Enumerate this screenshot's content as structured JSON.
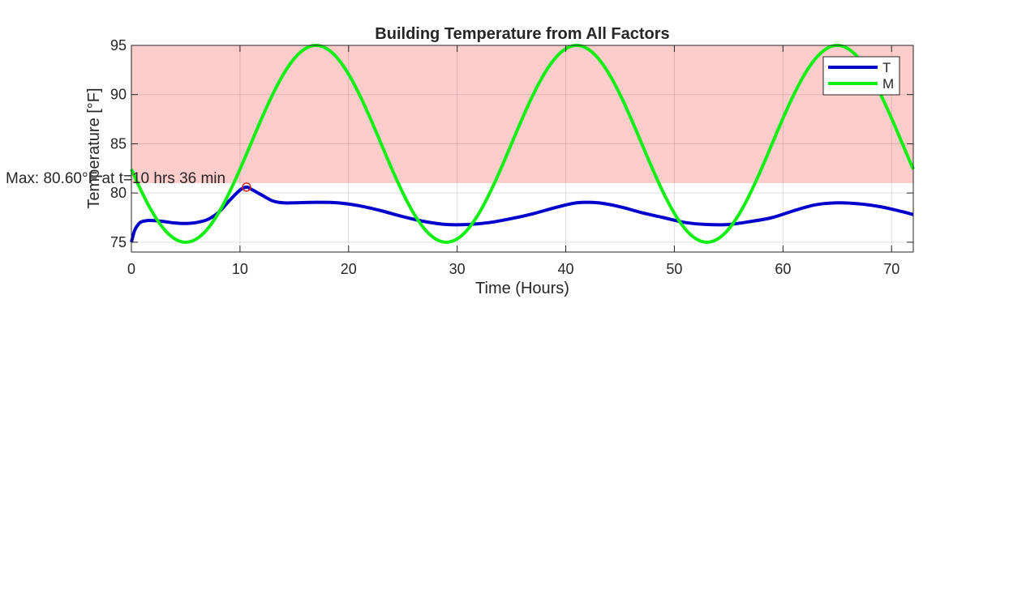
{
  "chart_data": {
    "type": "line",
    "title": "Building Temperature from All Factors",
    "xlabel": "Time (Hours)",
    "ylabel": "Temperature [°F]",
    "xlim": [
      0,
      72
    ],
    "ylim": [
      74,
      95
    ],
    "xticks": [
      0,
      10,
      20,
      30,
      40,
      50,
      60,
      70
    ],
    "yticks": [
      75,
      80,
      85,
      90,
      95
    ],
    "grid": true,
    "legend_position": "top-right",
    "shaded_region": {
      "y_from": 81,
      "y_to": 95,
      "color": "#ffcccc"
    },
    "series": [
      {
        "name": "T",
        "color": "#0000cc",
        "x": [
          0,
          0.3,
          0.7,
          1,
          1.5,
          2,
          3,
          4,
          5,
          6,
          7,
          8,
          9,
          10,
          10.6,
          11,
          12,
          13,
          14,
          15,
          17,
          19,
          21,
          23,
          25,
          27,
          29,
          31,
          33,
          35,
          37,
          39,
          41,
          43,
          45,
          47,
          49,
          51,
          53,
          55,
          57,
          59,
          61,
          63,
          65,
          67,
          69,
          71,
          72
        ],
        "values": [
          75.0,
          76.2,
          76.9,
          77.1,
          77.2,
          77.2,
          77.1,
          76.95,
          76.9,
          77.0,
          77.3,
          78.0,
          79.2,
          80.3,
          80.6,
          80.4,
          79.8,
          79.2,
          79.0,
          79.0,
          79.05,
          79.0,
          78.7,
          78.2,
          77.6,
          77.1,
          76.8,
          76.8,
          77.0,
          77.4,
          77.9,
          78.5,
          79.0,
          79.0,
          78.6,
          78.0,
          77.5,
          77.0,
          76.8,
          76.8,
          77.1,
          77.5,
          78.2,
          78.8,
          79.0,
          78.9,
          78.6,
          78.1,
          77.8
        ]
      },
      {
        "name": "M",
        "color": "#11ee11",
        "period": 24,
        "mean": 85,
        "amplitude": 10,
        "peak_at_hour": 17
      }
    ],
    "annotation": {
      "text": "Max: 80.60°F at t=10 hrs 36 min",
      "x": 10.6,
      "y": 80.6,
      "marker_color": "#dd2222"
    }
  }
}
